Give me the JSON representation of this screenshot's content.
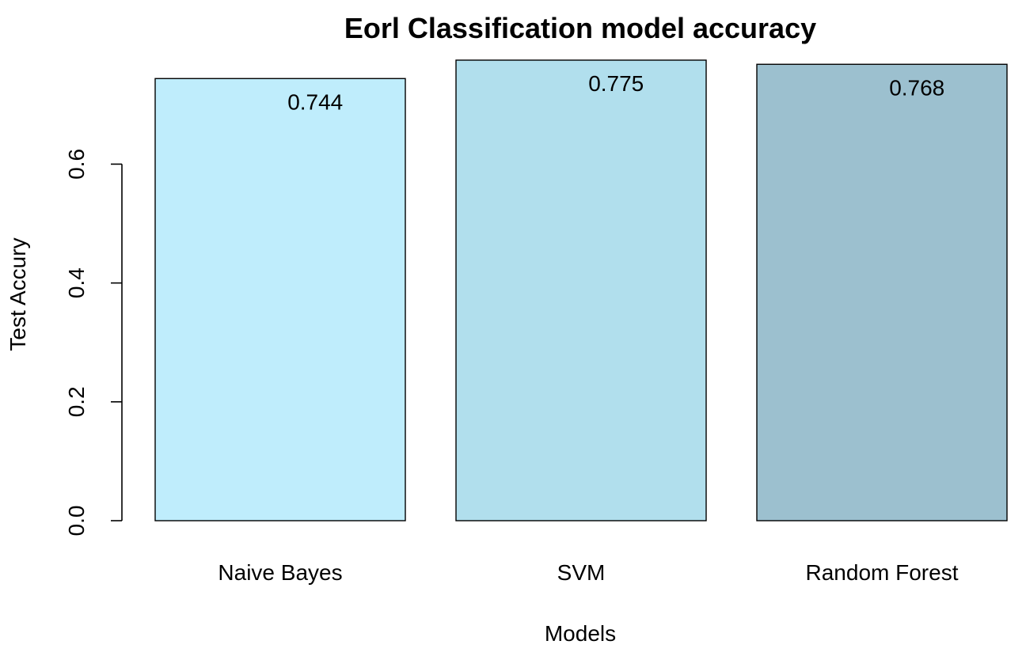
{
  "chart_data": {
    "type": "bar",
    "title": "Eorl Classification model accuracy",
    "xlabel": "Models",
    "ylabel": "Test Accury",
    "categories": [
      "Naive Bayes",
      "SVM",
      "Random Forest"
    ],
    "values": [
      0.744,
      0.775,
      0.768
    ],
    "data_labels": [
      "0.744",
      "0.775",
      "0.768"
    ],
    "bar_colors": [
      "#bfedfc",
      "#b1dfed",
      "#9cc0cf"
    ],
    "ylim": [
      0,
      0.775
    ],
    "yticks": [
      0.0,
      0.2,
      0.4,
      0.6
    ],
    "ytick_labels": [
      "0.0",
      "0.2",
      "0.4",
      "0.6"
    ],
    "grid": false,
    "legend": "none"
  }
}
